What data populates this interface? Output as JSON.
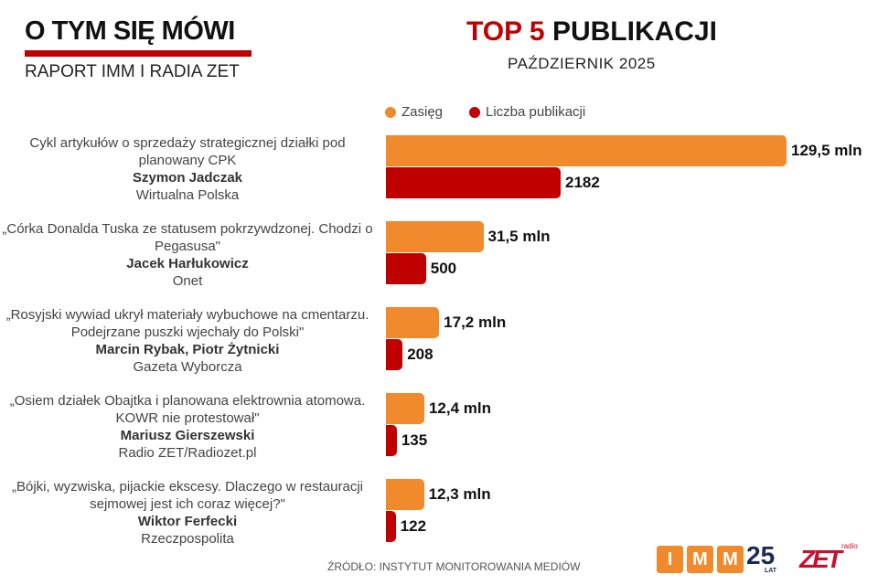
{
  "header": {
    "title_left": "O TYM SIĘ MÓWI",
    "subtitle_left": "RAPORT IMM I RADIA ZET",
    "title_right_accent": "TOP 5",
    "title_right_rest": "PUBLIKACJI",
    "subtitle_right": "PAŹDZIERNIK  2025"
  },
  "colors": {
    "zasieg": "#f08a2c",
    "liczba": "#c00000"
  },
  "chart_data": {
    "type": "bar",
    "orientation": "horizontal",
    "legend": [
      "Zasięg",
      "Liczba publikacji"
    ],
    "legend_position": "top",
    "categories": [
      {
        "title": "Cykl artykułów o sprzedaży strategicznej działki pod planowany CPK",
        "author": "Szymon Jadczak",
        "outlet": "Wirtualna Polska"
      },
      {
        "title": "„Córka Donalda Tuska ze statusem pokrzywdzonej. Chodzi o Pegasusa\"",
        "author": "Jacek Harłukowicz",
        "outlet": "Onet"
      },
      {
        "title": "„Rosyjski wywiad ukrył materiały wybuchowe na cmentarzu. Podejrzane puszki wjechały do Polski\"",
        "author": "Marcin Rybak, Piotr Żytnicki",
        "outlet": "Gazeta Wyborcza"
      },
      {
        "title": "„Osiem działek Obajtka i planowana elektrownia atomowa. KOWR nie protestował\"",
        "author": "Mariusz Gierszewski",
        "outlet": "Radio ZET/Radiozet.pl"
      },
      {
        "title": "„Bójki, wyzwiska, pijackie ekscesy. Dlaczego w restauracji sejmowej jest ich coraz więcej?\"",
        "author": "Wiktor Ferfecki",
        "outlet": "Rzeczpospolita"
      }
    ],
    "series": [
      {
        "name": "Zasięg",
        "values": [
          129.5,
          31.5,
          17.2,
          12.4,
          12.3
        ],
        "labels": [
          "129,5 mln",
          "31,5 mln",
          "17,2 mln",
          "12,4 mln",
          "12,3 mln"
        ]
      },
      {
        "name": "Liczba publikacji",
        "values": [
          2182,
          500,
          208,
          135,
          122
        ],
        "labels": [
          "2182",
          "500",
          "208",
          "135",
          "122"
        ]
      }
    ]
  },
  "footer": {
    "source": "ŹRÓDŁO: INSTYTUT MONITOROWANIA MEDIÓW",
    "imm_letters": [
      "I",
      "M",
      "M"
    ],
    "imm_years": "25",
    "imm_lat": "LAT",
    "zet_logo": "ZET",
    "zet_radio": "radio"
  }
}
